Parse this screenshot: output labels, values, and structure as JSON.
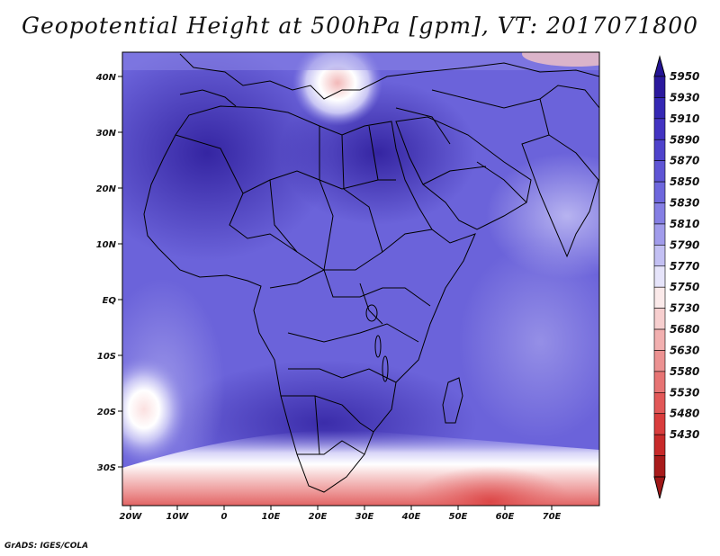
{
  "title": "Geopotential Height at 500hPa [gpm], VT: 2017071800",
  "credit": "GrADS: IGES/COLA",
  "map": {
    "lat_labels": [
      "40N",
      "30N",
      "20N",
      "10N",
      "EQ",
      "10S",
      "20S",
      "30S"
    ],
    "lon_labels": [
      "20W",
      "10W",
      "0",
      "10E",
      "20E",
      "30E",
      "40E",
      "50E",
      "60E",
      "70E"
    ]
  },
  "colorbar": {
    "labels": [
      "5950",
      "5930",
      "5910",
      "5890",
      "5870",
      "5850",
      "5830",
      "5810",
      "5790",
      "5770",
      "5750",
      "5730",
      "5680",
      "5630",
      "5580",
      "5530",
      "5480",
      "5430"
    ],
    "colors": [
      "#2b199d",
      "#3528b4",
      "#4334c2",
      "#4f43cc",
      "#5f55d5",
      "#6e67dd",
      "#857fe4",
      "#a19ceb",
      "#c3c0f3",
      "#e6e4fa",
      "#fbeaea",
      "#f7cfcf",
      "#f2b0b0",
      "#ec9292",
      "#e77474",
      "#e25858",
      "#d93d3d",
      "#c82a2a",
      "#a81b1b"
    ],
    "top_arrow_color": "#241494",
    "bottom_arrow_color": "#a01818"
  }
}
